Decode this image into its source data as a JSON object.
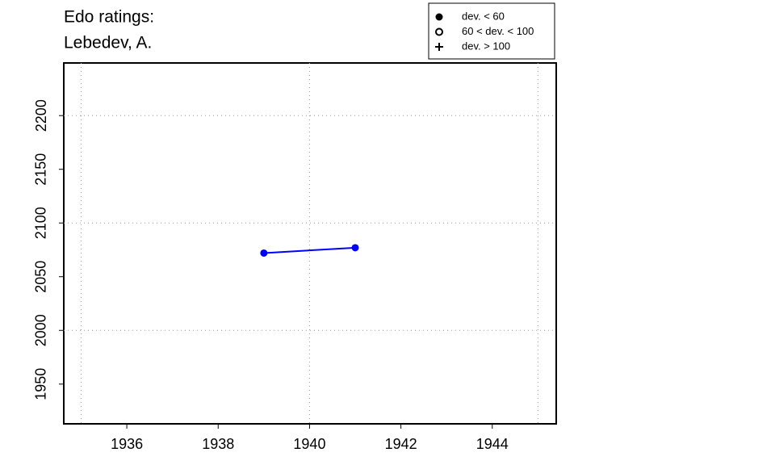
{
  "chart_data": {
    "type": "line",
    "title": "Edo ratings:",
    "subtitle": "Lebedev, A.",
    "x": [
      1939,
      1941
    ],
    "series": [
      {
        "color": "#0000ff",
        "marker": "filled-circle",
        "values": [
          2072,
          2077
        ]
      }
    ],
    "xlim": [
      1934.62,
      1945.4
    ],
    "xticks": [
      1936,
      1938,
      1940,
      1942,
      1944
    ],
    "ylim": [
      1913,
      2249
    ],
    "yticks": [
      1950,
      2000,
      2050,
      2100,
      2150,
      2200
    ],
    "xgrid": [
      1935,
      1940,
      1945
    ],
    "ygrid": [
      2000,
      2100,
      2200
    ],
    "grid": true,
    "legend": {
      "position": "top-right",
      "entries": [
        {
          "label": "dev. < 60",
          "symbol": "filled-circle"
        },
        {
          "label": "60 < dev. < 100",
          "symbol": "open-circle"
        },
        {
          "label": "dev. > 100",
          "symbol": "plus"
        }
      ]
    }
  }
}
